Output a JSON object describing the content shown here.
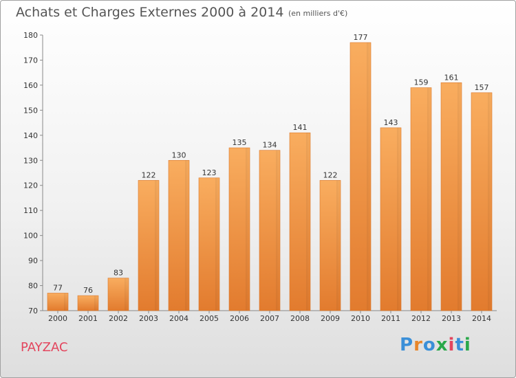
{
  "header": {
    "title": "Achats et Charges Externes 2000 à 2014",
    "subtitle": "(en milliers d'€)"
  },
  "footer": {
    "commune": "PAYZAC",
    "brand": "Proxiti"
  },
  "colors": {
    "bar_light": "#f7a85a",
    "bar_dark": "#e8863a",
    "bar_edge": "#d9772b",
    "title": "#555555",
    "commune": "#e3455d"
  },
  "chart_data": {
    "type": "bar",
    "title": "Achats et Charges Externes 2000 à 2014",
    "subtitle": "(en milliers d'€)",
    "categories": [
      "2000",
      "2001",
      "2002",
      "2003",
      "2004",
      "2005",
      "2006",
      "2007",
      "2008",
      "2009",
      "2010",
      "2011",
      "2012",
      "2013",
      "2014"
    ],
    "values": [
      77,
      76,
      83,
      122,
      130,
      123,
      135,
      134,
      141,
      122,
      177,
      143,
      159,
      161,
      157
    ],
    "ylim": [
      70,
      180
    ],
    "yticks": [
      70,
      80,
      90,
      100,
      110,
      120,
      130,
      140,
      150,
      160,
      170,
      180
    ],
    "grid": false,
    "legend": "none"
  }
}
